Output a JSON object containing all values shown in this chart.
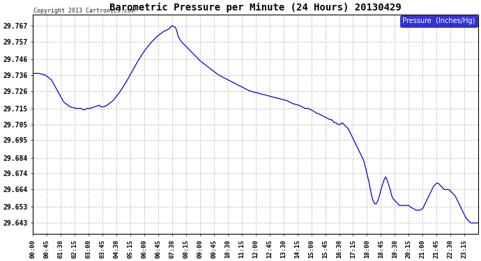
{
  "title": "Barometric Pressure per Minute (24 Hours) 20130429",
  "copyright": "Copyright 2013 Cartronics.com",
  "legend_label": "Pressure  (Inches/Hg)",
  "line_color": "#0000cc",
  "legend_bg": "#0000cc",
  "legend_fg": "#ffffff",
  "background_color": "#ffffff",
  "grid_color": "#bbbbbb",
  "yticks": [
    29.643,
    29.653,
    29.664,
    29.674,
    29.684,
    29.695,
    29.705,
    29.715,
    29.726,
    29.736,
    29.746,
    29.757,
    29.767
  ],
  "ylim": [
    29.636,
    29.774
  ],
  "xtick_labels": [
    "00:00",
    "00:45",
    "01:30",
    "02:15",
    "03:00",
    "03:45",
    "04:30",
    "05:15",
    "06:00",
    "06:45",
    "07:30",
    "08:15",
    "09:00",
    "09:45",
    "10:30",
    "11:15",
    "12:00",
    "12:45",
    "13:30",
    "14:15",
    "15:00",
    "15:45",
    "16:30",
    "17:15",
    "18:00",
    "18:45",
    "19:30",
    "20:15",
    "21:00",
    "21:45",
    "22:30",
    "23:15"
  ],
  "waypoints": [
    [
      0,
      29.737
    ],
    [
      20,
      29.737
    ],
    [
      40,
      29.736
    ],
    [
      60,
      29.733
    ],
    [
      80,
      29.726
    ],
    [
      100,
      29.719
    ],
    [
      120,
      29.716
    ],
    [
      140,
      29.715
    ],
    [
      155,
      29.715
    ],
    [
      165,
      29.714
    ],
    [
      175,
      29.715
    ],
    [
      185,
      29.715
    ],
    [
      200,
      29.716
    ],
    [
      215,
      29.717
    ],
    [
      220,
      29.716
    ],
    [
      230,
      29.716
    ],
    [
      240,
      29.717
    ],
    [
      260,
      29.72
    ],
    [
      280,
      29.725
    ],
    [
      300,
      29.731
    ],
    [
      320,
      29.738
    ],
    [
      340,
      29.745
    ],
    [
      360,
      29.751
    ],
    [
      380,
      29.756
    ],
    [
      400,
      29.76
    ],
    [
      420,
      29.763
    ],
    [
      440,
      29.765
    ],
    [
      450,
      29.767
    ],
    [
      460,
      29.766
    ],
    [
      465,
      29.764
    ],
    [
      470,
      29.76
    ],
    [
      480,
      29.757
    ],
    [
      495,
      29.754
    ],
    [
      510,
      29.751
    ],
    [
      525,
      29.748
    ],
    [
      540,
      29.745
    ],
    [
      560,
      29.742
    ],
    [
      580,
      29.739
    ],
    [
      600,
      29.736
    ],
    [
      620,
      29.734
    ],
    [
      640,
      29.732
    ],
    [
      660,
      29.73
    ],
    [
      680,
      29.728
    ],
    [
      700,
      29.726
    ],
    [
      720,
      29.725
    ],
    [
      740,
      29.724
    ],
    [
      760,
      29.723
    ],
    [
      780,
      29.722
    ],
    [
      800,
      29.721
    ],
    [
      820,
      29.72
    ],
    [
      840,
      29.718
    ],
    [
      860,
      29.717
    ],
    [
      870,
      29.716
    ],
    [
      880,
      29.715
    ],
    [
      890,
      29.715
    ],
    [
      900,
      29.714
    ],
    [
      910,
      29.713
    ],
    [
      916,
      29.712
    ],
    [
      920,
      29.712
    ],
    [
      930,
      29.711
    ],
    [
      940,
      29.71
    ],
    [
      950,
      29.709
    ],
    [
      960,
      29.708
    ],
    [
      965,
      29.708
    ],
    [
      970,
      29.707
    ],
    [
      975,
      29.706
    ],
    [
      980,
      29.706
    ],
    [
      985,
      29.705
    ],
    [
      990,
      29.705
    ],
    [
      995,
      29.705
    ],
    [
      1000,
      29.706
    ],
    [
      1005,
      29.705
    ],
    [
      1010,
      29.704
    ],
    [
      1015,
      29.703
    ],
    [
      1020,
      29.702
    ],
    [
      1025,
      29.7
    ],
    [
      1030,
      29.698
    ],
    [
      1035,
      29.696
    ],
    [
      1040,
      29.694
    ],
    [
      1045,
      29.692
    ],
    [
      1050,
      29.69
    ],
    [
      1055,
      29.688
    ],
    [
      1060,
      29.686
    ],
    [
      1065,
      29.684
    ],
    [
      1070,
      29.682
    ],
    [
      1075,
      29.678
    ],
    [
      1080,
      29.674
    ],
    [
      1085,
      29.67
    ],
    [
      1090,
      29.665
    ],
    [
      1095,
      29.66
    ],
    [
      1100,
      29.657
    ],
    [
      1105,
      29.655
    ],
    [
      1110,
      29.655
    ],
    [
      1115,
      29.657
    ],
    [
      1120,
      29.66
    ],
    [
      1125,
      29.664
    ],
    [
      1130,
      29.667
    ],
    [
      1135,
      29.67
    ],
    [
      1140,
      29.672
    ],
    [
      1145,
      29.67
    ],
    [
      1150,
      29.667
    ],
    [
      1155,
      29.664
    ],
    [
      1160,
      29.66
    ],
    [
      1165,
      29.658
    ],
    [
      1170,
      29.657
    ],
    [
      1175,
      29.656
    ],
    [
      1180,
      29.655
    ],
    [
      1185,
      29.654
    ],
    [
      1190,
      29.654
    ],
    [
      1200,
      29.654
    ],
    [
      1210,
      29.654
    ],
    [
      1215,
      29.654
    ],
    [
      1220,
      29.653
    ],
    [
      1230,
      29.652
    ],
    [
      1240,
      29.651
    ],
    [
      1250,
      29.651
    ],
    [
      1260,
      29.652
    ],
    [
      1270,
      29.656
    ],
    [
      1280,
      29.66
    ],
    [
      1290,
      29.664
    ],
    [
      1295,
      29.666
    ],
    [
      1300,
      29.667
    ],
    [
      1305,
      29.668
    ],
    [
      1310,
      29.668
    ],
    [
      1315,
      29.667
    ],
    [
      1320,
      29.666
    ],
    [
      1325,
      29.665
    ],
    [
      1330,
      29.664
    ],
    [
      1335,
      29.664
    ],
    [
      1340,
      29.664
    ],
    [
      1345,
      29.664
    ],
    [
      1350,
      29.663
    ],
    [
      1355,
      29.662
    ],
    [
      1360,
      29.661
    ],
    [
      1365,
      29.66
    ],
    [
      1370,
      29.658
    ],
    [
      1375,
      29.656
    ],
    [
      1380,
      29.654
    ],
    [
      1385,
      29.652
    ],
    [
      1390,
      29.65
    ],
    [
      1395,
      29.648
    ],
    [
      1400,
      29.646
    ],
    [
      1405,
      29.645
    ],
    [
      1410,
      29.644
    ],
    [
      1415,
      29.643
    ],
    [
      1419,
      29.643
    ]
  ]
}
